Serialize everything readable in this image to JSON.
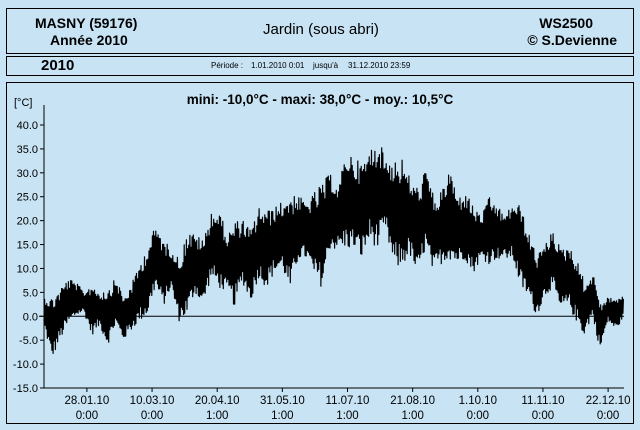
{
  "header": {
    "station": "MASNY (59176)",
    "year_label": "Année 2010",
    "title": "Jardin (sous abri)",
    "device": "WS2500",
    "copyright": "© S.Devienne"
  },
  "period_bar": {
    "year": "2010",
    "period_label": "Période :",
    "start": "1.01.2010   0:01",
    "until_label": "jusqu'à",
    "end": "31.12.2010   23:59"
  },
  "stats": "mini: -10,0°C - maxi: 38,0°C - moy.: 10,5°C",
  "chart_data": {
    "type": "line",
    "ylabel": "[°C]",
    "ylim": [
      -15,
      40
    ],
    "yticks": [
      "40.0",
      "35.0",
      "30.0",
      "25.0",
      "20.0",
      "15.0",
      "10.0",
      "5.0",
      "0.0",
      "-5.0",
      "-10.0",
      "-15.0"
    ],
    "ytick_values": [
      40,
      35,
      30,
      25,
      20,
      15,
      10,
      5,
      0,
      -5,
      -10,
      -15
    ],
    "xticks": [
      {
        "date": "28.01.10",
        "time": "0:00",
        "day": 27
      },
      {
        "date": "10.03.10",
        "time": "0:00",
        "day": 68
      },
      {
        "date": "20.04.10",
        "time": "1:00",
        "day": 109
      },
      {
        "date": "31.05.10",
        "time": "1:00",
        "day": 150
      },
      {
        "date": "11.07.10",
        "time": "1:00",
        "day": 191
      },
      {
        "date": "21.08.10",
        "time": "1:00",
        "day": 232
      },
      {
        "date": "1.10.10",
        "time": "0:00",
        "day": 273
      },
      {
        "date": "11.11.10",
        "time": "0:00",
        "day": 314
      },
      {
        "date": "22.12.10",
        "time": "0:00",
        "day": 355
      }
    ],
    "series": [
      {
        "color": "#000000",
        "x": [
          0,
          5,
          10,
          15,
          20,
          25,
          30,
          35,
          40,
          45,
          50,
          55,
          60,
          65,
          70,
          75,
          80,
          85,
          90,
          95,
          100,
          105,
          110,
          115,
          120,
          125,
          130,
          135,
          140,
          145,
          150,
          155,
          160,
          165,
          170,
          175,
          180,
          185,
          190,
          195,
          200,
          205,
          210,
          215,
          220,
          225,
          230,
          235,
          240,
          245,
          250,
          255,
          260,
          265,
          270,
          275,
          280,
          285,
          290,
          295,
          300,
          305,
          310,
          315,
          320,
          325,
          330,
          335,
          340,
          345,
          350,
          355,
          360,
          365
        ],
        "min": [
          -2,
          -9,
          -5,
          -2,
          0,
          1,
          -4,
          -2,
          -6,
          -2,
          -5,
          -3,
          -1,
          0,
          6,
          2,
          6,
          -1,
          0,
          5,
          2,
          8,
          6,
          5,
          2,
          7,
          3,
          8,
          6,
          9,
          10,
          5,
          12,
          12,
          8,
          6,
          14,
          14,
          14,
          14,
          12,
          16,
          14,
          18,
          10,
          10,
          13,
          8,
          14,
          9,
          11,
          12,
          11,
          12,
          9,
          12,
          11,
          12,
          12,
          12,
          6,
          4,
          0,
          4,
          6,
          1,
          2,
          -1,
          -4,
          0,
          -7,
          -1,
          -3,
          0
        ],
        "max": [
          4,
          4,
          6,
          8,
          7,
          5,
          7,
          5,
          6,
          8,
          4,
          7,
          11,
          15,
          19,
          16,
          14,
          12,
          18,
          17,
          16,
          22,
          22,
          17,
          20,
          20,
          18,
          23,
          22,
          23,
          24,
          26,
          25,
          24,
          26,
          28,
          30,
          27,
          35,
          33,
          32,
          35,
          37,
          33,
          33,
          33,
          29,
          27,
          31,
          25,
          26,
          31,
          25,
          26,
          23,
          21,
          25,
          23,
          21,
          24,
          23,
          17,
          13,
          15,
          18,
          14,
          15,
          12,
          7,
          9,
          3,
          4,
          4,
          4
        ]
      }
    ]
  }
}
